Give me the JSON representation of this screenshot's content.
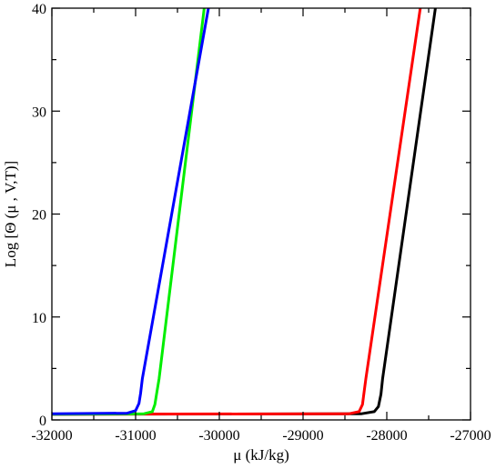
{
  "chart_data": {
    "type": "line",
    "title": "",
    "xlabel": "μ  (kJ/kg)",
    "ylabel": "Log [Θ (μ , V,T)]",
    "xlim": [
      -32000,
      -27000
    ],
    "ylim": [
      0,
      40
    ],
    "xticks": [
      -32000,
      -31000,
      -30000,
      -29000,
      -28000,
      -27000
    ],
    "xtick_labels": [
      "-32000",
      "-31000",
      "-30000",
      "-29000",
      "-28000",
      "-27000"
    ],
    "yticks": [
      0,
      10,
      20,
      30,
      40
    ],
    "ytick_labels": [
      "0",
      "10",
      "20",
      "30",
      "40"
    ],
    "grid": false,
    "legend": "none",
    "series": [
      {
        "color": "#000000",
        "x": [
          -32000,
          -28300,
          -28150,
          -28100,
          -28070,
          -28050,
          -27420
        ],
        "y": [
          0.55,
          0.6,
          0.8,
          1.3,
          2.5,
          4.0,
          40
        ]
      },
      {
        "color": "#ff0000",
        "x": [
          -32000,
          -28450,
          -28330,
          -28290,
          -28270,
          -28250,
          -27600
        ],
        "y": [
          0.55,
          0.6,
          0.8,
          1.5,
          2.8,
          4.0,
          40
        ]
      },
      {
        "color": "#00ee00",
        "x": [
          -32000,
          -30900,
          -30800,
          -30770,
          -30750,
          -30720,
          -30180
        ],
        "y": [
          0.55,
          0.6,
          0.8,
          1.5,
          2.5,
          4.0,
          40
        ]
      },
      {
        "color": "#0000ff",
        "x": [
          -32000,
          -31100,
          -31000,
          -30960,
          -30940,
          -30920,
          -30130
        ],
        "y": [
          0.6,
          0.65,
          0.9,
          1.6,
          2.6,
          4.0,
          40
        ]
      }
    ]
  }
}
